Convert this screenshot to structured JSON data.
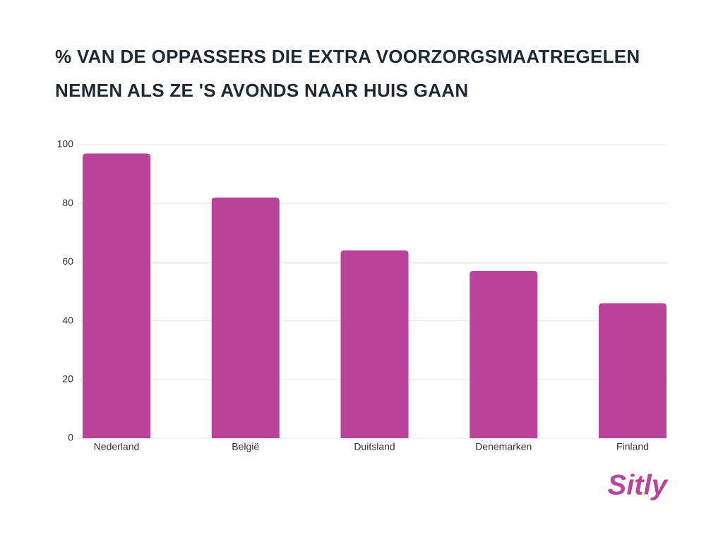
{
  "chart_data": {
    "type": "bar",
    "title": "% VAN DE OPPASSERS DIE EXTRA  VOORZORGSMAATREGELEN NEMEN ALS ZE 'S AVONDS NAAR HUIS GAAN",
    "categories": [
      "Nederland",
      "België",
      "Duitsland",
      "Denemarken",
      "Finland"
    ],
    "values": [
      97,
      82,
      64,
      57,
      46
    ],
    "color": "#b9449a",
    "ylim": [
      0,
      100
    ],
    "yticks": [
      0,
      20,
      40,
      60,
      80,
      100
    ],
    "grid": true,
    "logo": "Sitly"
  }
}
